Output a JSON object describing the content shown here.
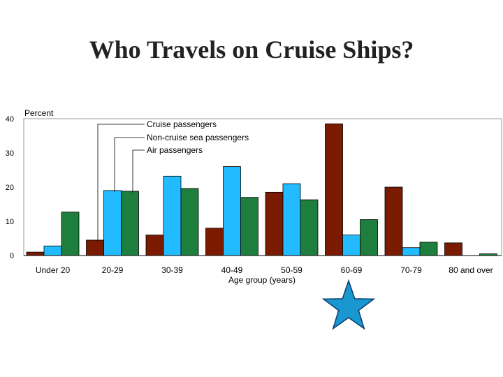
{
  "slide": {
    "title": "Who Travels on Cruise Ships?"
  },
  "chart_data": {
    "type": "bar",
    "ylabel": "Percent",
    "xlabel": "Age group (years)",
    "ylim": [
      0,
      40
    ],
    "yticks": [
      0,
      10,
      20,
      30,
      40
    ],
    "categories": [
      "Under 20",
      "20-29",
      "30-39",
      "40-49",
      "50-59",
      "60-69",
      "70-79",
      "80 and over"
    ],
    "series": [
      {
        "name": "Cruise passengers",
        "color": "#7a1a00",
        "values": [
          1.0,
          4.5,
          6.0,
          8.0,
          18.5,
          38.5,
          20.0,
          3.7
        ]
      },
      {
        "name": "Non-cruise sea passengers",
        "color": "#22bbff",
        "values": [
          2.8,
          19.0,
          23.2,
          26.0,
          21.0,
          6.0,
          2.3,
          0
        ]
      },
      {
        "name": "Air passengers",
        "color": "#1e7e3e",
        "values": [
          12.7,
          18.8,
          19.6,
          17.0,
          16.3,
          10.5,
          3.9,
          0.5
        ]
      }
    ],
    "grid": false,
    "legend": "top-left (callout labels)",
    "annotation": {
      "icon": "star-icon",
      "target_category": "60-69",
      "color": "#1a96d0"
    }
  }
}
